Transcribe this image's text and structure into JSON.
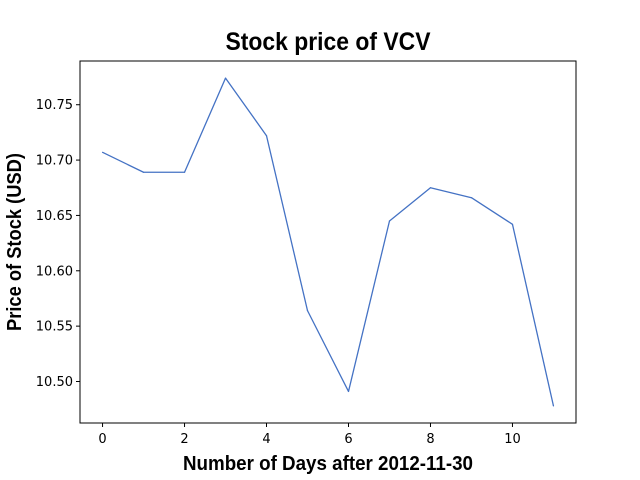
{
  "chart_data": {
    "type": "line",
    "title": "Stock price of VCV",
    "xlabel": "Number of Days after 2012-11-30",
    "ylabel": "Price of Stock (USD)",
    "x": [
      0,
      1,
      2,
      3,
      4,
      5,
      6,
      7,
      8,
      9,
      10,
      11
    ],
    "series": [
      {
        "values": [
          10.707,
          10.689,
          10.689,
          10.774,
          10.722,
          10.564,
          10.491,
          10.645,
          10.675,
          10.666,
          10.642,
          10.478
        ],
        "color": "#4472c4"
      }
    ],
    "xlim": [
      -0.55,
      11.55
    ],
    "ylim": [
      10.4625,
      10.7895
    ],
    "xticks": [
      0,
      2,
      4,
      6,
      8,
      10
    ],
    "xtick_labels": [
      "0",
      "2",
      "4",
      "6",
      "8",
      "10"
    ],
    "yticks": [
      10.5,
      10.55,
      10.6,
      10.65,
      10.7,
      10.75
    ],
    "ytick_labels": [
      "10.50",
      "10.55",
      "10.60",
      "10.65",
      "10.70",
      "10.75"
    ],
    "grid": false,
    "legend": false
  }
}
